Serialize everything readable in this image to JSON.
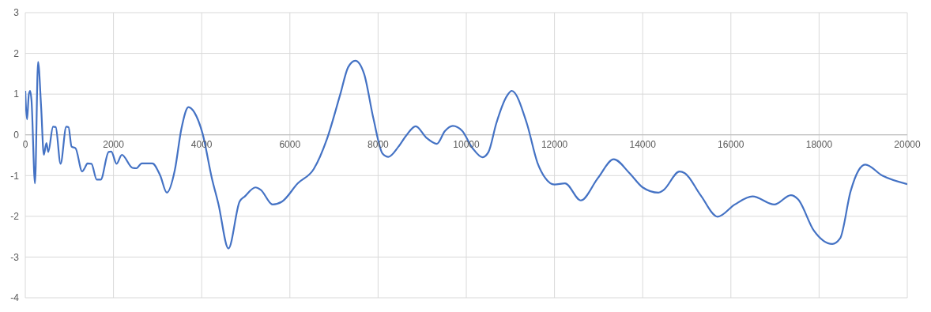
{
  "chart_data": {
    "type": "line",
    "xlim": [
      0,
      20000
    ],
    "xticks": [
      0,
      2000,
      4000,
      6000,
      8000,
      10000,
      12000,
      14000,
      16000,
      18000,
      20000
    ],
    "ylim": [
      -4,
      3
    ],
    "yticks": [
      -4,
      -3,
      -2,
      -1,
      0,
      1,
      2,
      3
    ],
    "grid": true,
    "legend": false,
    "marker": "none",
    "line_style": "solid",
    "series": [
      {
        "color": "#4472c4",
        "x": [
          0,
          10,
          40,
          80,
          110,
          140,
          220,
          290,
          360,
          420,
          480,
          520,
          630,
          690,
          800,
          930,
          980,
          1050,
          1140,
          1290,
          1350,
          1410,
          1500,
          1620,
          1710,
          1890,
          1950,
          2070,
          2190,
          2430,
          2520,
          2640,
          2880,
          3060,
          3210,
          3390,
          3540,
          3700,
          3840,
          4020,
          4230,
          4380,
          4607,
          4859,
          4979,
          5219,
          5339,
          5610,
          5820,
          6180,
          6541,
          6841,
          7141,
          7321,
          7484,
          7682,
          7892,
          8102,
          8234,
          8462,
          8643,
          8853,
          9093,
          9333,
          9514,
          9694,
          9904,
          10144,
          10370,
          10504,
          10680,
          10925,
          11030,
          11373,
          11612,
          11791,
          12000,
          12239,
          12597,
          12985,
          13343,
          13701,
          14000,
          14358,
          14478,
          14836,
          14955,
          15313,
          15701,
          16089,
          16490,
          16985,
          17360,
          17522,
          17881,
          18299,
          18478,
          18716,
          18896,
          19045,
          19433,
          20000
        ],
        "values": [
          1.08,
          0.8,
          0.38,
          0.99,
          1.08,
          0.86,
          -1.19,
          1.79,
          0.67,
          -0.49,
          -0.2,
          -0.42,
          0.2,
          0.19,
          -0.71,
          0.2,
          0.19,
          -0.29,
          -0.33,
          -0.9,
          -0.81,
          -0.7,
          -0.71,
          -1.1,
          -1.1,
          -0.42,
          -0.41,
          -0.71,
          -0.49,
          -0.81,
          -0.82,
          -0.7,
          -0.7,
          -1.0,
          -1.42,
          -0.87,
          0.15,
          0.68,
          0.54,
          0.03,
          -1.06,
          -1.7,
          -2.79,
          -1.64,
          -1.51,
          -1.29,
          -1.35,
          -1.71,
          -1.64,
          -1.19,
          -0.84,
          -0.1,
          0.99,
          1.66,
          1.82,
          1.5,
          0.41,
          -0.46,
          -0.54,
          -0.29,
          -0.01,
          0.21,
          -0.07,
          -0.22,
          0.09,
          0.22,
          0.1,
          -0.33,
          -0.55,
          -0.42,
          0.28,
          0.96,
          1.08,
          0.28,
          -0.68,
          -1.06,
          -1.22,
          -1.19,
          -1.61,
          -1.06,
          -0.6,
          -0.94,
          -1.29,
          -1.42,
          -1.35,
          -0.9,
          -0.94,
          -1.48,
          -2.01,
          -1.71,
          -1.51,
          -1.71,
          -1.48,
          -1.58,
          -2.35,
          -2.68,
          -2.54,
          -1.38,
          -0.87,
          -0.73,
          -1.0,
          -1.21
        ]
      }
    ]
  }
}
